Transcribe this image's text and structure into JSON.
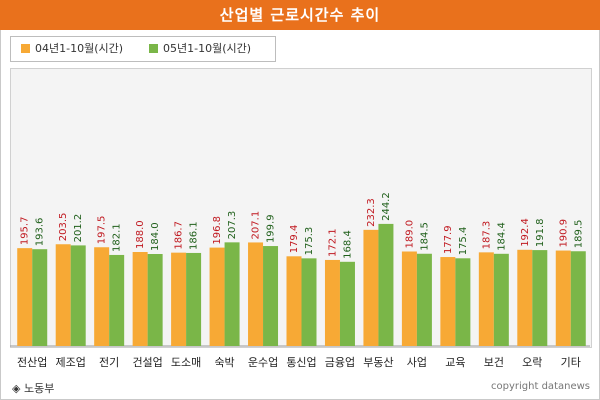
{
  "chart_data": {
    "type": "bar",
    "title": "산업별 근로시간수 추이",
    "categories": [
      "전산업",
      "제조업",
      "전기",
      "건설업",
      "도소매",
      "숙박",
      "운수업",
      "통신업",
      "금융업",
      "부동산",
      "사업",
      "교육",
      "보건",
      "오락",
      "기타"
    ],
    "series": [
      {
        "name": "04년1-10월(시간)",
        "color": "#f7a935",
        "labelColor": "#c0181f",
        "values": [
          195.7,
          203.5,
          197.5,
          188.0,
          186.7,
          196.8,
          207.1,
          179.4,
          172.1,
          232.3,
          189.0,
          177.9,
          187.3,
          192.4,
          190.9
        ],
        "labels": [
          "195.7",
          "203.5",
          "197.5",
          "188.0",
          "186.7",
          "196.8",
          "207.1",
          "179.4",
          "172.1",
          "232.3",
          "189.0",
          "177.9",
          "187.3",
          "192.4",
          "190.9"
        ]
      },
      {
        "name": "05년1-10월(시간)",
        "color": "#7ab648",
        "labelColor": "#1f5f1a",
        "values": [
          193.6,
          201.2,
          182.1,
          184.0,
          186.1,
          207.3,
          199.9,
          175.3,
          168.4,
          244.2,
          184.5,
          175.4,
          184.4,
          191.8,
          189.5
        ],
        "labels": [
          "193.6",
          "201.2",
          "182.1",
          "184.0",
          "186.1",
          "207.3",
          "199.9",
          "175.3",
          "168.4",
          "244.2",
          "184.5",
          "175.4",
          "184.4",
          "191.8",
          "189.5"
        ]
      }
    ],
    "ylim": [
      0,
      260
    ],
    "grid": false,
    "legend_position": "top-left"
  },
  "header": {
    "title": "산업별 근로시간수 추이",
    "background": "#e9711c"
  },
  "legend": {
    "items": [
      "04년1-10월(시간)",
      "05년1-10월(시간)"
    ]
  },
  "footer": {
    "source": "◈ 노동부",
    "copyright": "copyright datanews"
  }
}
